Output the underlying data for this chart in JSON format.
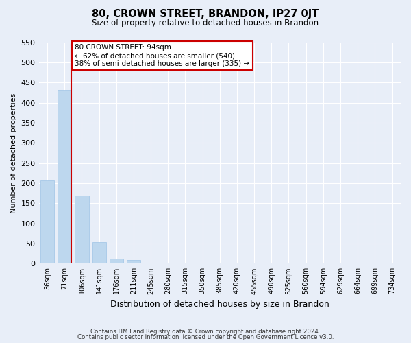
{
  "title": "80, CROWN STREET, BRANDON, IP27 0JT",
  "subtitle": "Size of property relative to detached houses in Brandon",
  "xlabel": "Distribution of detached houses by size in Brandon",
  "ylabel": "Number of detached properties",
  "bar_labels": [
    "36sqm",
    "71sqm",
    "106sqm",
    "141sqm",
    "176sqm",
    "211sqm",
    "245sqm",
    "280sqm",
    "315sqm",
    "350sqm",
    "385sqm",
    "420sqm",
    "455sqm",
    "490sqm",
    "525sqm",
    "560sqm",
    "594sqm",
    "629sqm",
    "664sqm",
    "699sqm",
    "734sqm"
  ],
  "bar_values": [
    207,
    431,
    170,
    53,
    13,
    9,
    0,
    0,
    0,
    0,
    0,
    0,
    0,
    0,
    0,
    0,
    0,
    0,
    0,
    0,
    3
  ],
  "bar_color": "#bdd7ee",
  "bar_edge_color": "#9dc3e6",
  "ylim": [
    0,
    550
  ],
  "yticks": [
    0,
    50,
    100,
    150,
    200,
    250,
    300,
    350,
    400,
    450,
    500,
    550
  ],
  "property_line_label": "80 CROWN STREET: 94sqm",
  "annotation_smaller": "← 62% of detached houses are smaller (540)",
  "annotation_larger": "38% of semi-detached houses are larger (335) →",
  "annotation_box_color": "#ffffff",
  "annotation_box_edge": "#cc0000",
  "property_line_color": "#cc0000",
  "bg_color": "#e8eef8",
  "footer1": "Contains HM Land Registry data © Crown copyright and database right 2024.",
  "footer2": "Contains public sector information licensed under the Open Government Licence v3.0."
}
